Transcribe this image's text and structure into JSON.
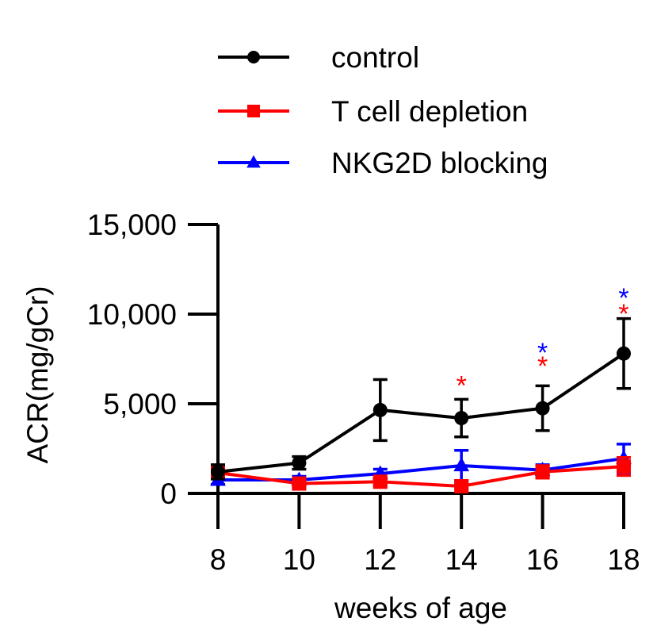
{
  "chart_data": {
    "type": "line",
    "title": "",
    "xlabel": "weeks of age",
    "ylabel": "ACR(mg/gCr)",
    "x": [
      8,
      10,
      12,
      14,
      16,
      18
    ],
    "x_tick_labels": [
      "8",
      "10",
      "12",
      "14",
      "16",
      "18"
    ],
    "xlim": [
      8,
      18
    ],
    "ylim": [
      0,
      15000
    ],
    "y_ticks": [
      0,
      5000,
      10000,
      15000
    ],
    "y_tick_labels": [
      "0",
      "5,000",
      "10,000",
      "15,000"
    ],
    "grid": false,
    "legend_position": "top",
    "series": [
      {
        "name": "control",
        "color": "#000000",
        "marker": "circle",
        "values": [
          1200,
          1700,
          4650,
          4200,
          4750,
          7800
        ],
        "errors": [
          400,
          350,
          1700,
          1050,
          1250,
          1950
        ]
      },
      {
        "name": "T cell depletion",
        "color": "#ff0000",
        "marker": "square",
        "values": [
          1150,
          550,
          650,
          400,
          1200,
          1500
        ],
        "errors": [
          300,
          200,
          200,
          150,
          350,
          500
        ]
      },
      {
        "name": "NKG2D blocking",
        "color": "#0000ff",
        "marker": "triangle",
        "values": [
          750,
          750,
          1100,
          1550,
          1300,
          1950
        ],
        "errors": [
          250,
          200,
          250,
          850,
          300,
          800
        ]
      }
    ],
    "annotations": [
      {
        "text": "*",
        "x": 14,
        "y": 6300,
        "color": "#ff0000"
      },
      {
        "text": "*",
        "x": 16,
        "y": 7400,
        "color": "#ff0000"
      },
      {
        "text": "*",
        "x": 16,
        "y": 8150,
        "color": "#0000ff"
      },
      {
        "text": "*",
        "x": 18,
        "y": 10300,
        "color": "#ff0000"
      },
      {
        "text": "*",
        "x": 18,
        "y": 11200,
        "color": "#0000ff"
      }
    ]
  }
}
